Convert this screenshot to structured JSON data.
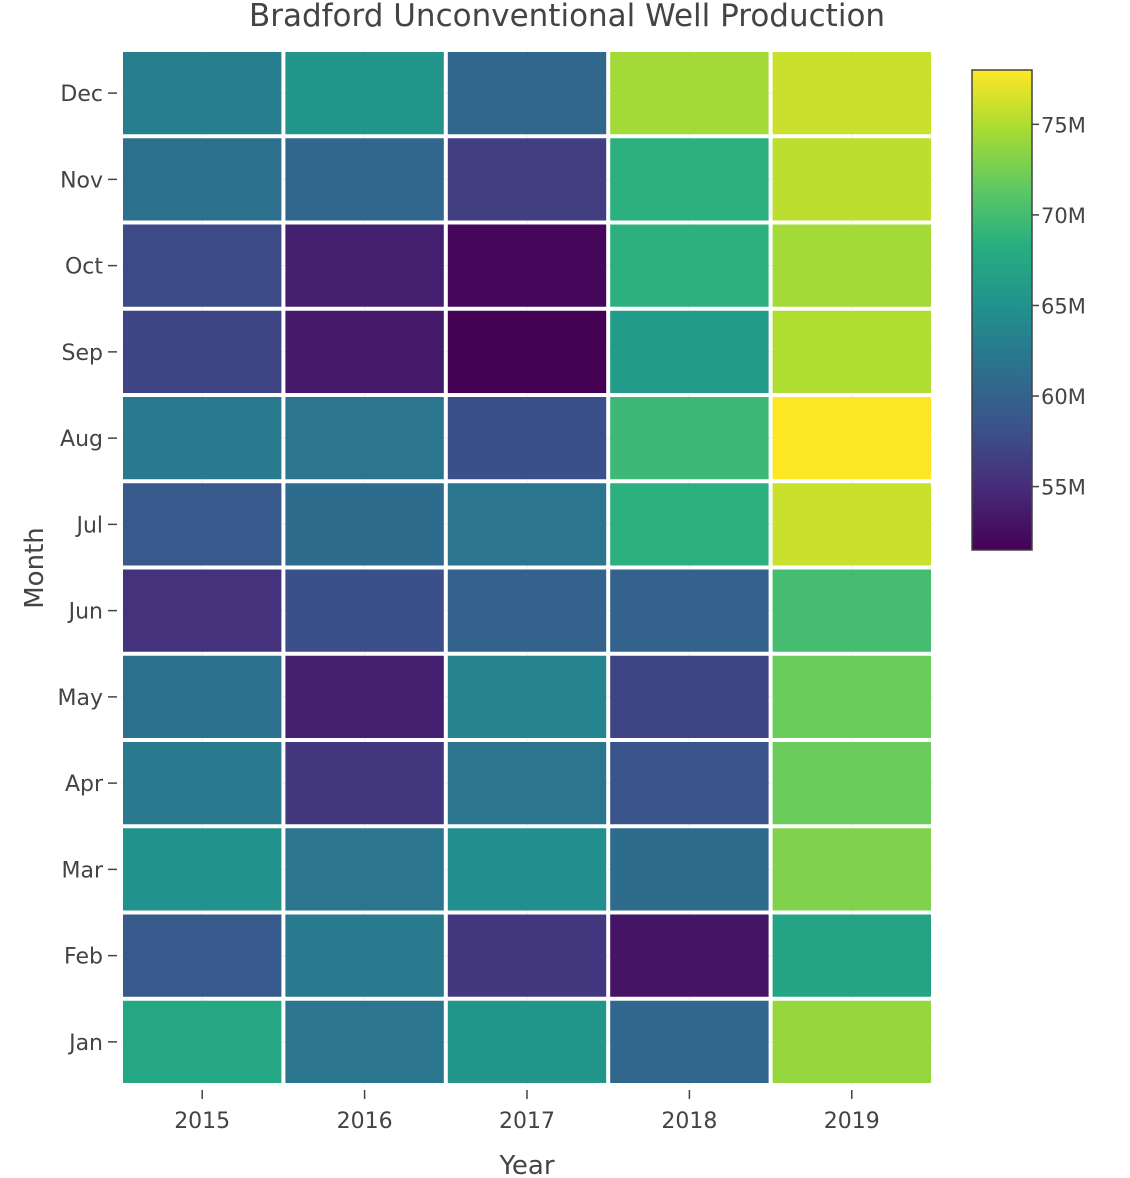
{
  "chart_data": {
    "type": "heatmap",
    "title": "Bradford Unconventional Well Production",
    "xlabel": "Year",
    "ylabel": "Month",
    "x": [
      "2015",
      "2016",
      "2017",
      "2018",
      "2019"
    ],
    "y": [
      "Jan",
      "Feb",
      "Mar",
      "Apr",
      "May",
      "Jun",
      "Jul",
      "Aug",
      "Sep",
      "Oct",
      "Nov",
      "Dec"
    ],
    "values": [
      [
        67.5,
        62.0,
        65.5,
        60.5,
        74.0
      ],
      [
        59.0,
        62.5,
        56.0,
        53.0,
        67.0
      ],
      [
        65.0,
        62.0,
        64.5,
        61.0,
        73.0
      ],
      [
        62.5,
        56.0,
        62.0,
        58.5,
        72.0
      ],
      [
        61.5,
        54.0,
        63.5,
        57.0,
        72.0
      ],
      [
        55.5,
        58.0,
        60.0,
        60.0,
        70.0
      ],
      [
        59.0,
        61.0,
        62.0,
        68.5,
        76.0
      ],
      [
        62.5,
        62.0,
        58.0,
        69.5,
        78.0
      ],
      [
        57.0,
        53.5,
        51.5,
        66.0,
        75.0
      ],
      [
        57.5,
        54.0,
        52.0,
        68.5,
        74.5
      ],
      [
        61.5,
        60.5,
        56.5,
        68.5,
        75.5
      ],
      [
        63.0,
        65.5,
        60.5,
        74.5,
        76.0
      ]
    ],
    "zlim": [
      51.5,
      78.0
    ],
    "colorscale": "Viridis",
    "colorbar": {
      "ticks": [
        55,
        60,
        65,
        70,
        75
      ],
      "tick_labels": [
        "55M",
        "60M",
        "65M",
        "70M",
        "75M"
      ]
    },
    "grid": true,
    "colors": {
      "cell_gap": "#ffffff",
      "text": "#444444",
      "grid": "#eeeeee"
    }
  }
}
